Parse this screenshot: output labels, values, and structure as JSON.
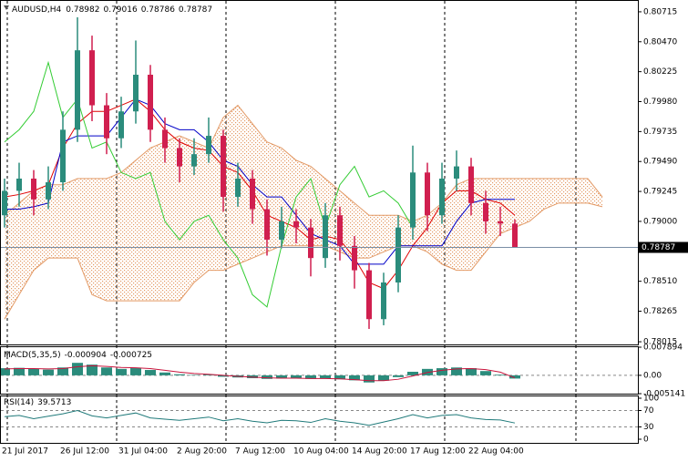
{
  "chart_data": [
    {
      "type": "candlestick",
      "symbol": "AUDUSD,H4",
      "x": [
        "21 Jul 2017",
        null,
        null,
        null,
        "26 Jul 12:00",
        null,
        null,
        null,
        "31 Jul 04:00",
        null,
        null,
        null,
        "2 Aug 20:00",
        null,
        null,
        null,
        "7 Aug 12:00",
        null,
        null,
        null,
        "10 Aug 04:00",
        null,
        null,
        null,
        "14 Aug 20:00",
        null,
        null,
        null,
        "17 Aug 12:00",
        null,
        null,
        null,
        "22 Aug 04:00",
        null,
        null,
        null
      ],
      "open": [
        0.7905,
        0.7925,
        0.7935,
        0.7918,
        0.7932,
        0.7975,
        0.804,
        0.7995,
        0.7968,
        0.799,
        0.802,
        0.7975,
        0.796,
        0.7945,
        0.7955,
        0.797,
        0.792,
        0.7935,
        0.791,
        0.7885,
        0.79,
        0.7895,
        0.787,
        0.7905,
        0.788,
        0.786,
        0.782,
        0.785,
        0.7895,
        0.794,
        0.7905,
        0.7935,
        0.7945,
        0.7915,
        0.79,
        0.78982
      ],
      "high": [
        0.7935,
        0.7948,
        0.7942,
        0.7945,
        0.799,
        0.8067,
        0.8052,
        0.8005,
        0.8002,
        0.8048,
        0.8028,
        0.7985,
        0.7968,
        0.7968,
        0.7985,
        0.7975,
        0.7948,
        0.7942,
        0.7918,
        0.7912,
        0.791,
        0.7902,
        0.7915,
        0.7912,
        0.7888,
        0.7866,
        0.7858,
        0.7905,
        0.7962,
        0.7948,
        0.7948,
        0.7958,
        0.7952,
        0.7925,
        0.7912,
        0.79016
      ],
      "low": [
        0.7895,
        0.7912,
        0.7905,
        0.791,
        0.7925,
        0.7965,
        0.7982,
        0.7955,
        0.796,
        0.798,
        0.7965,
        0.7948,
        0.7932,
        0.7938,
        0.7948,
        0.7908,
        0.7912,
        0.7898,
        0.7872,
        0.7878,
        0.7882,
        0.7855,
        0.7862,
        0.7868,
        0.7845,
        0.7812,
        0.7815,
        0.7842,
        0.7885,
        0.7892,
        0.7898,
        0.7925,
        0.7905,
        0.789,
        0.7888,
        0.78786
      ],
      "close": [
        0.7925,
        0.7935,
        0.7918,
        0.7932,
        0.7975,
        0.804,
        0.7995,
        0.7968,
        0.799,
        0.802,
        0.7975,
        0.796,
        0.7945,
        0.7955,
        0.797,
        0.792,
        0.7935,
        0.791,
        0.7885,
        0.79,
        0.7895,
        0.787,
        0.7905,
        0.788,
        0.786,
        0.782,
        0.785,
        0.7895,
        0.794,
        0.7905,
        0.7935,
        0.7945,
        0.7915,
        0.79,
        0.78982,
        0.78787
      ],
      "up_color": "#2b8c7c",
      "down_color": "#d01f4f",
      "lines": [
        {
          "color": "#e00000",
          "values": [
            0.792,
            0.7922,
            0.7925,
            0.793,
            0.796,
            0.798,
            0.799,
            0.799,
            0.7995,
            0.8,
            0.799,
            0.7975,
            0.7965,
            0.796,
            0.7958,
            0.7945,
            0.794,
            0.7925,
            0.7905,
            0.79,
            0.7895,
            0.7885,
            0.7888,
            0.7885,
            0.787,
            0.785,
            0.7845,
            0.786,
            0.788,
            0.7895,
            0.7915,
            0.7925,
            0.7925,
            0.7918,
            0.7915,
            0.7905
          ]
        },
        {
          "color": "#0000c8",
          "values": [
            0.791,
            0.791,
            0.7912,
            0.7915,
            0.7965,
            0.797,
            0.797,
            0.797,
            0.7985,
            0.8,
            0.7995,
            0.798,
            0.7975,
            0.7975,
            0.7965,
            0.795,
            0.7945,
            0.793,
            0.792,
            0.792,
            0.7905,
            0.789,
            0.7885,
            0.788,
            0.7865,
            0.7865,
            0.7865,
            0.788,
            0.788,
            0.788,
            0.788,
            0.79,
            0.7915,
            0.7918,
            0.7918,
            0.7918
          ]
        },
        {
          "color": "#33cc33",
          "values": [
            0.7965,
            0.7975,
            0.799,
            0.803,
            0.7985,
            0.8,
            0.796,
            0.7965,
            0.794,
            0.7935,
            0.794,
            0.79,
            0.7885,
            0.79,
            0.7905,
            0.7885,
            0.787,
            0.784,
            0.783,
            0.788,
            0.792,
            0.7935,
            0.7895,
            0.793,
            0.7945,
            0.792,
            0.7925,
            0.7915,
            0.7895,
            null,
            null,
            null,
            null,
            null,
            null,
            null
          ]
        }
      ],
      "cloud": {
        "color": "#e39a66",
        "span_a": [
          0.7905,
          0.7915,
          0.7925,
          0.793,
          0.793,
          0.7935,
          0.7935,
          0.7935,
          0.794,
          0.795,
          0.796,
          0.7965,
          0.797,
          0.7965,
          0.796,
          0.7985,
          0.7995,
          0.798,
          0.7965,
          0.796,
          0.795,
          0.7945,
          0.7935,
          0.7925,
          0.7915,
          0.7905,
          0.7905,
          0.7905,
          0.79,
          0.7905,
          0.7915,
          0.793,
          0.7935,
          0.7935,
          0.7935,
          0.7935,
          0.7935,
          0.7935,
          0.7935,
          0.7935,
          0.7935,
          0.792
        ],
        "span_b": [
          0.782,
          0.784,
          0.786,
          0.787,
          0.787,
          0.787,
          0.784,
          0.7835,
          0.7835,
          0.7835,
          0.7835,
          0.7835,
          0.7835,
          0.785,
          0.786,
          0.786,
          0.7865,
          0.787,
          0.7875,
          0.788,
          0.788,
          0.788,
          0.788,
          0.7875,
          0.787,
          0.787,
          0.7875,
          0.788,
          0.788,
          0.7875,
          0.7865,
          0.786,
          0.786,
          0.7875,
          0.789,
          0.7895,
          0.79,
          0.791,
          0.7915,
          0.7915,
          0.7915,
          0.7912
        ]
      },
      "ylim": [
        0.77993,
        0.80804
      ],
      "yticks": [
        0.80715,
        {
          "value": 0.8047,
          "label": "0.80470"
        },
        0.80225,
        {
          "value": 0.7998,
          "label": "0.79980"
        },
        0.79735,
        {
          "value": 0.7949,
          "label": "0.79490"
        },
        0.79245,
        {
          "value": 0.79,
          "label": "0.79000"
        },
        {
          "value": 0.7851,
          "label": "0.78510"
        },
        0.78265,
        0.78015
      ]
    },
    {
      "type": "macd",
      "title": "MACD(5,35,5)",
      "color": "#2b8c7c",
      "signal_color": "#c8143c",
      "values": [
        0.002,
        0.0021,
        0.0018,
        0.0016,
        0.0022,
        0.0035,
        0.003,
        0.0022,
        0.0018,
        0.002,
        0.0015,
        0.0008,
        0.0003,
        0.0001,
        0.0002,
        -0.0004,
        -0.0006,
        -0.0008,
        -0.001,
        -0.0009,
        -0.0008,
        -0.001,
        -0.0009,
        -0.0011,
        -0.0014,
        -0.002,
        -0.0015,
        -0.0005,
        0.001,
        0.0018,
        0.002,
        0.0022,
        0.002,
        0.0012,
        0.0002,
        -0.000904
      ],
      "signal": [
        0.0018,
        0.0019,
        0.0019,
        0.0018,
        0.0019,
        0.0024,
        0.0027,
        0.0025,
        0.0022,
        0.0021,
        0.0019,
        0.0014,
        0.0009,
        0.0005,
        0.0003,
        0,
        -0.0003,
        -0.0005,
        -0.0007,
        -0.0008,
        -0.0008,
        -0.0009,
        -0.0009,
        -0.001,
        -0.0012,
        -0.0015,
        -0.0015,
        -0.0011,
        -0.0002,
        0.0008,
        0.0014,
        0.0018,
        0.0019,
        0.0016,
        0.0009,
        -0.000725
      ],
      "ylim": [
        -0.005141,
        0.007894
      ],
      "yticks": [
        0.007894,
        {
          "value": 0,
          "label": "0.00"
        },
        -0.005141
      ]
    },
    {
      "type": "rsi",
      "title": "RSI(14)",
      "color": "#1f7a7a",
      "values": [
        55,
        58,
        50,
        56,
        62,
        70,
        57,
        52,
        58,
        64,
        52,
        49,
        46,
        50,
        54,
        45,
        50,
        44,
        40,
        46,
        45,
        41,
        50,
        44,
        40,
        34,
        42,
        50,
        60,
        52,
        58,
        60,
        52,
        48,
        47,
        39.5713
      ],
      "ylim": [
        0,
        100
      ],
      "yticks": [
        100,
        70,
        30,
        0
      ]
    }
  ]
}
